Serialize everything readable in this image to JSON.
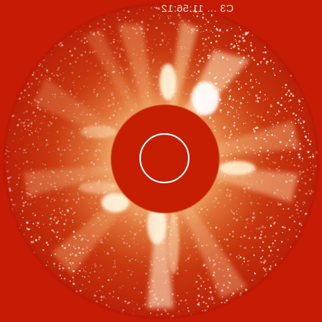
{
  "image": {
    "type": "coronagraph",
    "timestamp_text": "C3 ... 11:56:12",
    "colors": {
      "background": "#ffffff",
      "frame": "#c51a04",
      "occulter": "#c41e00",
      "sun_outline": "#ffffff",
      "bright_structure": "#fff6d5",
      "corona_mid": "#e8813d"
    }
  }
}
